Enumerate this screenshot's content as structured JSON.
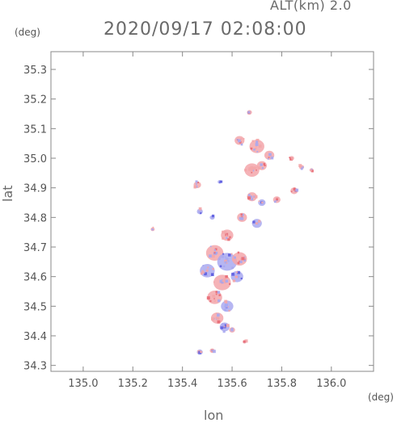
{
  "header": {
    "altitude_label": "ALT(km) 2.0",
    "title": "2020/09/17 02:08:00"
  },
  "axes": {
    "y_unit": "(deg)",
    "x_unit": "(deg)",
    "y_label": "lat",
    "x_label": "lon"
  },
  "colors": {
    "positive": "#f3a6aa",
    "positive_strong": "#e86a74",
    "negative": "#a9a9f0",
    "negative_strong": "#5d5de0",
    "frame": "#888888"
  },
  "chart_data": {
    "type": "heatmap",
    "xlim": [
      134.87,
      136.17
    ],
    "ylim": [
      34.28,
      35.36
    ],
    "x_ticks": [
      135.0,
      135.2,
      135.4,
      135.6,
      135.8,
      136.0
    ],
    "x_tick_labels": [
      "135.0",
      "135.2",
      "135.4",
      "135.6",
      "135.8",
      "136.0"
    ],
    "y_ticks": [
      34.3,
      34.4,
      34.5,
      34.6,
      34.7,
      34.8,
      34.9,
      35.0,
      35.1,
      35.2,
      35.3
    ],
    "y_tick_labels": [
      "34.3",
      "34.4",
      "34.5",
      "34.6",
      "34.7",
      "34.8",
      "34.9",
      "35.0",
      "35.1",
      "35.2",
      "35.3"
    ],
    "grid": false,
    "sign_of_values": "mixed (red positive, blue negative)",
    "patches": [
      {
        "lon": 135.67,
        "lat": 35.155,
        "r": 0.01,
        "sign": "pos"
      },
      {
        "lon": 135.63,
        "lat": 35.06,
        "r": 0.02,
        "sign": "pos"
      },
      {
        "lon": 135.7,
        "lat": 35.04,
        "r": 0.03,
        "sign": "pos"
      },
      {
        "lon": 135.75,
        "lat": 35.01,
        "r": 0.02,
        "sign": "pos"
      },
      {
        "lon": 135.68,
        "lat": 34.96,
        "r": 0.03,
        "sign": "pos"
      },
      {
        "lon": 135.72,
        "lat": 34.975,
        "r": 0.02,
        "sign": "pos"
      },
      {
        "lon": 135.84,
        "lat": 35.0,
        "r": 0.01,
        "sign": "pos"
      },
      {
        "lon": 135.88,
        "lat": 34.97,
        "r": 0.01,
        "sign": "pos"
      },
      {
        "lon": 135.92,
        "lat": 34.96,
        "r": 0.008,
        "sign": "pos"
      },
      {
        "lon": 135.46,
        "lat": 34.91,
        "r": 0.015,
        "sign": "pos"
      },
      {
        "lon": 135.55,
        "lat": 34.92,
        "r": 0.008,
        "sign": "neg"
      },
      {
        "lon": 135.68,
        "lat": 34.87,
        "r": 0.02,
        "sign": "pos"
      },
      {
        "lon": 135.72,
        "lat": 34.85,
        "r": 0.015,
        "sign": "neg"
      },
      {
        "lon": 135.78,
        "lat": 34.86,
        "r": 0.015,
        "sign": "pos"
      },
      {
        "lon": 135.85,
        "lat": 34.89,
        "r": 0.015,
        "sign": "pos"
      },
      {
        "lon": 135.64,
        "lat": 34.8,
        "r": 0.02,
        "sign": "pos"
      },
      {
        "lon": 135.7,
        "lat": 34.78,
        "r": 0.02,
        "sign": "neg"
      },
      {
        "lon": 135.47,
        "lat": 34.82,
        "r": 0.012,
        "sign": "neg"
      },
      {
        "lon": 135.52,
        "lat": 34.8,
        "r": 0.01,
        "sign": "neg"
      },
      {
        "lon": 135.28,
        "lat": 34.76,
        "r": 0.008,
        "sign": "pos"
      },
      {
        "lon": 135.58,
        "lat": 34.74,
        "r": 0.025,
        "sign": "pos"
      },
      {
        "lon": 135.53,
        "lat": 34.68,
        "r": 0.035,
        "sign": "pos"
      },
      {
        "lon": 135.58,
        "lat": 34.65,
        "r": 0.04,
        "sign": "neg"
      },
      {
        "lon": 135.63,
        "lat": 34.66,
        "r": 0.03,
        "sign": "pos"
      },
      {
        "lon": 135.5,
        "lat": 34.62,
        "r": 0.03,
        "sign": "neg"
      },
      {
        "lon": 135.56,
        "lat": 34.58,
        "r": 0.035,
        "sign": "pos"
      },
      {
        "lon": 135.62,
        "lat": 34.6,
        "r": 0.025,
        "sign": "neg"
      },
      {
        "lon": 135.53,
        "lat": 34.53,
        "r": 0.03,
        "sign": "pos"
      },
      {
        "lon": 135.58,
        "lat": 34.5,
        "r": 0.025,
        "sign": "neg"
      },
      {
        "lon": 135.54,
        "lat": 34.46,
        "r": 0.025,
        "sign": "pos"
      },
      {
        "lon": 135.57,
        "lat": 34.43,
        "r": 0.02,
        "sign": "neg"
      },
      {
        "lon": 135.6,
        "lat": 34.42,
        "r": 0.012,
        "sign": "pos"
      },
      {
        "lon": 135.47,
        "lat": 34.345,
        "r": 0.012,
        "sign": "neg"
      },
      {
        "lon": 135.52,
        "lat": 34.35,
        "r": 0.01,
        "sign": "pos"
      },
      {
        "lon": 135.65,
        "lat": 34.38,
        "r": 0.008,
        "sign": "pos"
      }
    ]
  }
}
